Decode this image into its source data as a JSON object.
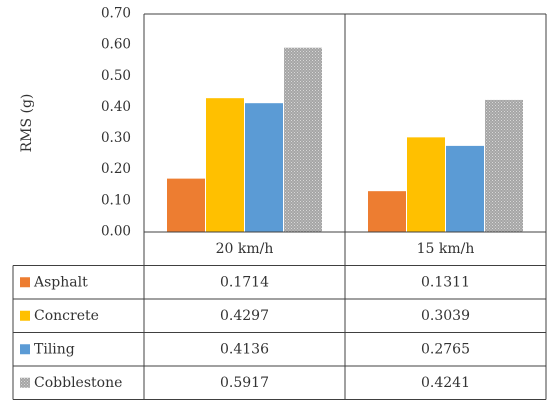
{
  "chart_data": {
    "type": "bar",
    "ylabel": "RMS (g)",
    "ylim": [
      0,
      0.7
    ],
    "ytick_step": 0.1,
    "ytick_labels": [
      "0.00",
      "0.10",
      "0.20",
      "0.30",
      "0.40",
      "0.50",
      "0.60",
      "0.70"
    ],
    "grid": false,
    "legend_placement": "data table",
    "categories": [
      "20 km/h",
      "15 km/h"
    ],
    "series": [
      {
        "name": "Asphalt",
        "values": [
          0.1714,
          0.1311
        ],
        "labels": [
          "0.1714",
          "0.1311"
        ],
        "color": "#ed7d31"
      },
      {
        "name": "Concrete",
        "values": [
          0.4297,
          0.3039
        ],
        "labels": [
          "0.4297",
          "0.3039"
        ],
        "color": "#ffc000"
      },
      {
        "name": "Tiling",
        "values": [
          0.4136,
          0.2765
        ],
        "labels": [
          "0.4136",
          "0.2765"
        ],
        "color": "#5b9bd5"
      },
      {
        "name": "Cobblestone",
        "values": [
          0.5917,
          0.4241
        ],
        "labels": [
          "0.5917",
          "0.4241"
        ],
        "color": "#a5a5a5"
      }
    ]
  }
}
